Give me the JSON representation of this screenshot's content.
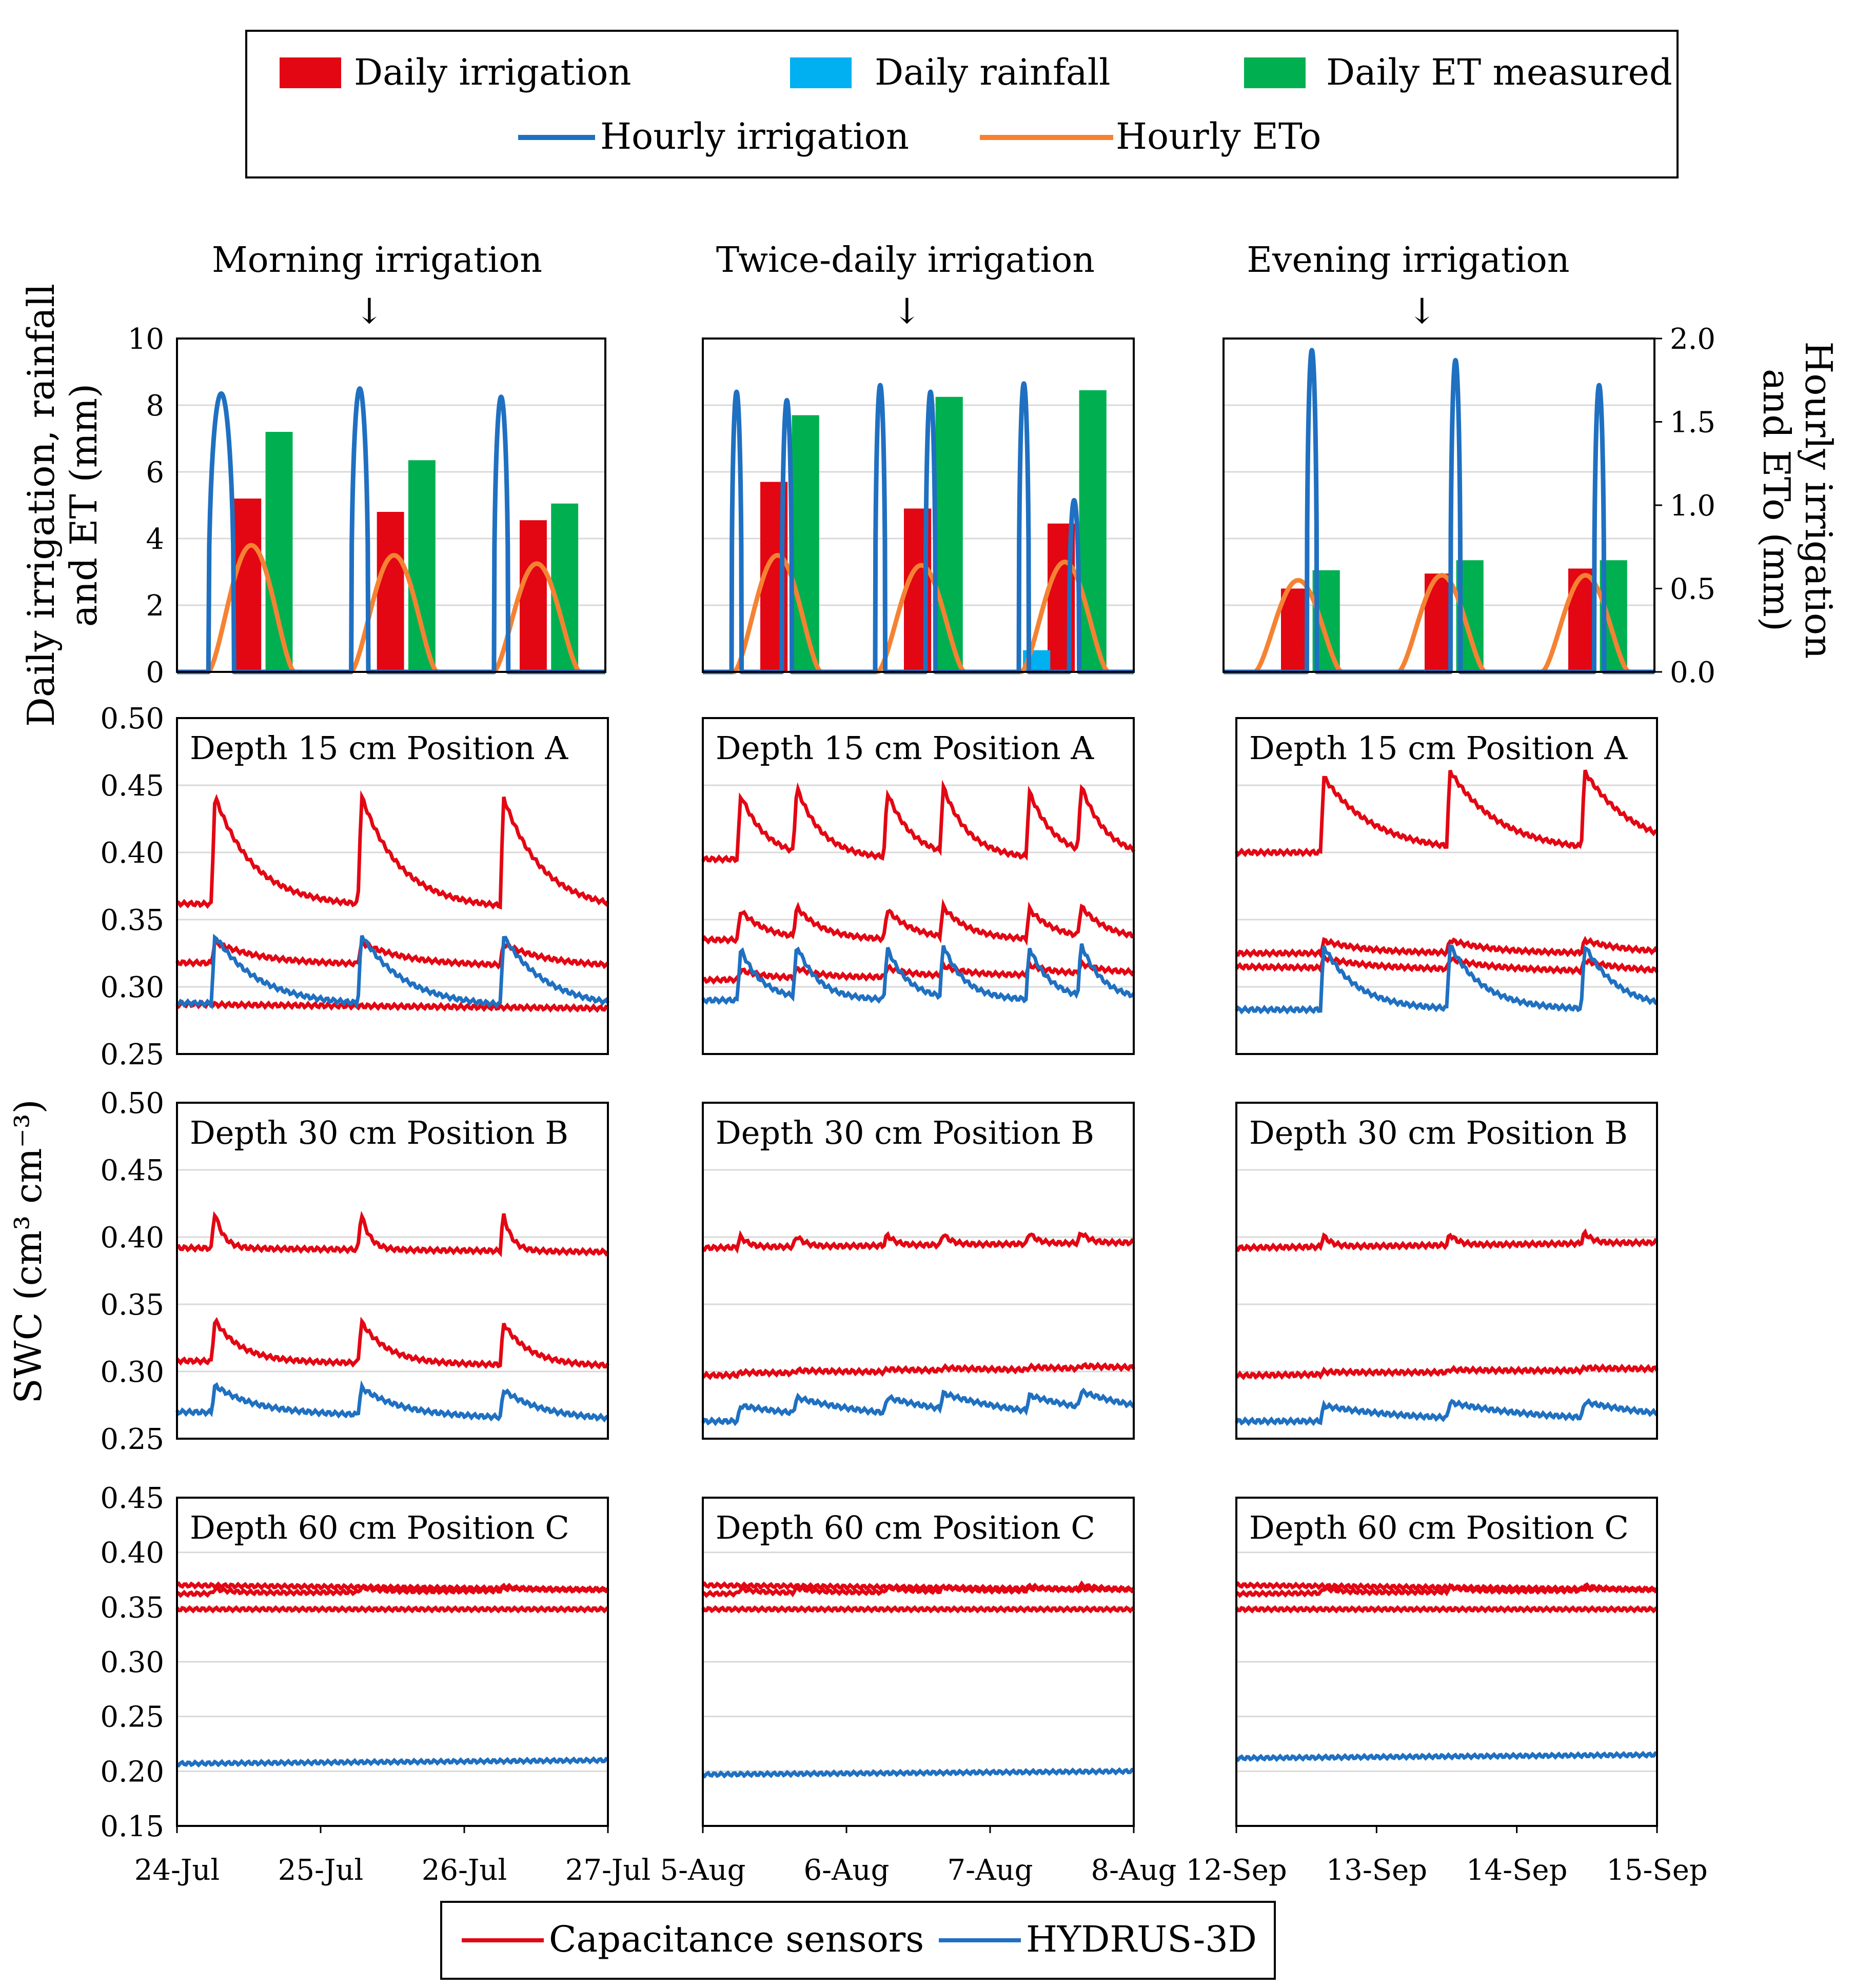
{
  "top_legend": {
    "items": [
      {
        "label": "Daily irrigation",
        "color": "#e30613",
        "kind": "bar"
      },
      {
        "label": "Daily rainfall",
        "color": "#00b0f0",
        "kind": "bar"
      },
      {
        "label": "Daily  ET measured",
        "color": "#00b050",
        "kind": "bar"
      },
      {
        "label": "Hourly  irrigation",
        "color": "#1f70c1",
        "kind": "line"
      },
      {
        "label": "Hourly ETo",
        "color": "#f58233",
        "kind": "line"
      }
    ]
  },
  "bottom_legend": {
    "items": [
      {
        "label": "Capacitance  sensors",
        "color": "#e30613"
      },
      {
        "label": "HYDRUS-3D",
        "color": "#1f70c1"
      }
    ]
  },
  "left_axis_title_top": {
    "line1": "Daily irrigation,  rainfall",
    "line2": "and ET (mm)"
  },
  "right_axis_title_top": {
    "line1": "Hourly irrigation",
    "line2": "and ETo (mm)"
  },
  "left_axis_title_swc": {
    "text": "SWC (cm³ cm⁻³)"
  },
  "chart_data": [
    {
      "type": "bar",
      "panel": "Morning irrigation",
      "title": "Morning irrigation",
      "arrow_marker": "↓",
      "x": [
        "24-Jul",
        "25-Jul",
        "26-Jul",
        "27-Jul"
      ],
      "ylabel": "Daily irrigation,  rainfall and ET (mm)",
      "ylim": [
        0,
        10
      ],
      "yticks": [
        "0",
        "2",
        "4",
        "6",
        "8",
        "10"
      ],
      "y2label": "Hourly irrigation and ETo (mm)",
      "y2lim": [
        0,
        2
      ],
      "y2ticks": [
        "0.0",
        "0.5",
        "1.0",
        "1.5",
        "2.0"
      ],
      "days": [
        {
          "irrigation": 5.2,
          "rainfall": 0,
          "et": 7.2
        },
        {
          "irrigation": 4.8,
          "rainfall": 0,
          "et": 6.35
        },
        {
          "irrigation": 4.55,
          "rainfall": 0,
          "et": 5.05
        }
      ],
      "hourly_irrigation": [
        {
          "start": 0.22,
          "peak": 1.67,
          "width": 0.18
        },
        {
          "start": 1.22,
          "peak": 1.7,
          "width": 0.12
        },
        {
          "start": 2.22,
          "peak": 1.65,
          "width": 0.1
        }
      ],
      "hourly_eto": [
        0.76,
        0.7,
        0.65
      ]
    },
    {
      "type": "bar",
      "panel": "Twice-daily irrigation",
      "title": "Twice-daily  irrigation",
      "arrow_marker": "↓",
      "x": [
        "5-Aug",
        "6-Aug",
        "7-Aug",
        "8-Aug"
      ],
      "ylim": [
        0,
        10
      ],
      "y2lim": [
        0,
        2
      ],
      "days": [
        {
          "irrigation": 5.7,
          "rainfall": 0,
          "et": 7.7
        },
        {
          "irrigation": 4.9,
          "rainfall": 0,
          "et": 8.25
        },
        {
          "irrigation": 4.45,
          "rainfall": 0.65,
          "et": 8.45
        }
      ],
      "hourly_irrigation": [
        {
          "start": 0.2,
          "peak": 1.68,
          "width": 0.07
        },
        {
          "start": 0.55,
          "peak": 1.63,
          "width": 0.07
        },
        {
          "start": 1.2,
          "peak": 1.72,
          "width": 0.07
        },
        {
          "start": 1.55,
          "peak": 1.68,
          "width": 0.07
        },
        {
          "start": 2.2,
          "peak": 1.73,
          "width": 0.07
        },
        {
          "start": 2.55,
          "peak": 1.03,
          "width": 0.07
        }
      ],
      "hourly_eto": [
        0.7,
        0.64,
        0.66
      ]
    },
    {
      "type": "bar",
      "panel": "Evening irrigation",
      "title": "Evening irrigation",
      "arrow_marker": "↓",
      "x": [
        "12-Sep",
        "13-Sep",
        "14-Sep",
        "15-Sep"
      ],
      "ylim": [
        0,
        10
      ],
      "y2lim": [
        0,
        2
      ],
      "days": [
        {
          "irrigation": 2.5,
          "rainfall": 0,
          "et": 3.05
        },
        {
          "irrigation": 2.95,
          "rainfall": 0,
          "et": 3.35
        },
        {
          "irrigation": 3.1,
          "rainfall": 0,
          "et": 3.35
        }
      ],
      "hourly_irrigation": [
        {
          "start": 0.58,
          "peak": 1.93,
          "width": 0.07
        },
        {
          "start": 1.58,
          "peak": 1.87,
          "width": 0.07
        },
        {
          "start": 2.58,
          "peak": 1.72,
          "width": 0.07
        }
      ],
      "hourly_eto": [
        0.55,
        0.58,
        0.58
      ]
    },
    {
      "type": "line",
      "row": "Depth 15 cm Position A",
      "label": "Depth  15 cm Position  A",
      "ylim": [
        0.25,
        0.5
      ],
      "yticks": [
        "0.25",
        "0.30",
        "0.35",
        "0.40",
        "0.45",
        "0.50"
      ],
      "series": [
        {
          "name": "Capacitance sensors",
          "sensor_1_range": [
            0.36,
            0.45
          ],
          "sensor_2_range": [
            0.315,
            0.335
          ],
          "sensor_3_level": 0.285
        },
        {
          "name": "HYDRUS-3D",
          "range": [
            0.283,
            0.347
          ]
        }
      ]
    },
    {
      "type": "line",
      "row": "Depth 30 cm Position B",
      "label": "Depth  30 cm Position  B",
      "ylim": [
        0.25,
        0.5
      ],
      "yticks": [
        "0.25",
        "0.30",
        "0.35",
        "0.40",
        "0.45",
        "0.50"
      ],
      "series": [
        {
          "name": "Capacitance sensors",
          "sensor_1_range": [
            0.39,
            0.43
          ],
          "sensor_2_range": [
            0.305,
            0.348
          ]
        },
        {
          "name": "HYDRUS-3D",
          "range": [
            0.264,
            0.295
          ]
        }
      ]
    },
    {
      "type": "line",
      "row": "Depth 60 cm Position C",
      "label": "Depth  60 cm Position  C",
      "ylim": [
        0.15,
        0.45
      ],
      "yticks": [
        "0.15",
        "0.20",
        "0.25",
        "0.30",
        "0.35",
        "0.40",
        "0.45"
      ],
      "series": [
        {
          "name": "Capacitance sensors",
          "levels": [
            0.37,
            0.362,
            0.35
          ]
        },
        {
          "name": "HYDRUS-3D",
          "level": 0.207
        }
      ]
    }
  ],
  "colors": {
    "irrigation": "#e30613",
    "rainfall": "#00b0f0",
    "et": "#00b050",
    "hourly_irrigation": "#1f70c1",
    "hourly_eto": "#f58233",
    "sensor": "#e30613",
    "hydrus": "#1f70c1",
    "grid": "#d9d9d9"
  }
}
